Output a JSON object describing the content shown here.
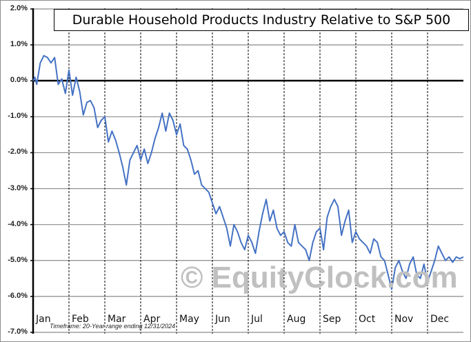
{
  "chart_data": {
    "type": "line",
    "title": "Durable Household Products Industry Relative to S&P 500",
    "xlabel": "",
    "ylabel": "",
    "ylim": [
      -7.0,
      2.0
    ],
    "y_ticks": [
      "2.0%",
      "1.0%",
      "0.0%",
      "-1.0%",
      "-2.0%",
      "-3.0%",
      "-4.0%",
      "-5.0%",
      "-6.0%",
      "-7.0%"
    ],
    "x_tick_labels": [
      "Jan",
      "Feb",
      "Mar",
      "Apr",
      "May",
      "Jun",
      "Jul",
      "Aug",
      "Sep",
      "Oct",
      "Nov",
      "Dec"
    ],
    "grid": {
      "horizontal": true,
      "vertical_dashed_month_dividers": true
    },
    "legend": null,
    "annotations": [
      "Timeframe: 20-Year range ending 12/31/2024",
      "© EquityClock.com"
    ],
    "series": [
      {
        "name": "Durable Household Products Industry Relative to S&P 500 (seasonal)",
        "color": "#4472c4",
        "x_month_fraction": [
          0.0,
          0.05,
          0.1,
          0.2,
          0.3,
          0.4,
          0.5,
          0.6,
          0.7,
          0.8,
          0.9,
          1.0,
          1.1,
          1.2,
          1.3,
          1.4,
          1.5,
          1.6,
          1.7,
          1.8,
          1.9,
          2.0,
          2.1,
          2.2,
          2.3,
          2.4,
          2.5,
          2.6,
          2.7,
          2.8,
          2.9,
          3.0,
          3.1,
          3.2,
          3.3,
          3.4,
          3.5,
          3.6,
          3.7,
          3.8,
          3.9,
          4.0,
          4.1,
          4.2,
          4.3,
          4.4,
          4.5,
          4.6,
          4.7,
          4.8,
          4.9,
          5.0,
          5.1,
          5.2,
          5.3,
          5.4,
          5.5,
          5.6,
          5.7,
          5.8,
          5.9,
          6.0,
          6.1,
          6.2,
          6.3,
          6.4,
          6.5,
          6.6,
          6.7,
          6.8,
          6.9,
          7.0,
          7.1,
          7.2,
          7.3,
          7.4,
          7.5,
          7.6,
          7.7,
          7.8,
          7.9,
          8.0,
          8.1,
          8.2,
          8.3,
          8.4,
          8.5,
          8.6,
          8.7,
          8.8,
          8.9,
          9.0,
          9.1,
          9.2,
          9.3,
          9.4,
          9.5,
          9.6,
          9.7,
          9.8,
          9.9,
          10.0,
          10.1,
          10.2,
          10.3,
          10.4,
          10.5,
          10.6,
          10.7,
          10.8,
          10.9,
          11.0,
          11.1,
          11.2,
          11.3,
          11.4,
          11.5,
          11.6,
          11.7,
          11.8,
          11.9,
          12.0
        ],
        "values": [
          0.0,
          0.1,
          -0.1,
          0.5,
          0.7,
          0.65,
          0.5,
          0.65,
          -0.1,
          0.05,
          -0.35,
          0.3,
          -0.4,
          0.1,
          -0.3,
          -0.95,
          -0.6,
          -0.55,
          -0.75,
          -1.3,
          -1.1,
          -1.0,
          -1.7,
          -1.4,
          -1.65,
          -2.0,
          -2.4,
          -2.9,
          -2.2,
          -2.0,
          -1.8,
          -2.2,
          -1.9,
          -2.3,
          -2.0,
          -1.6,
          -1.3,
          -0.9,
          -1.4,
          -0.9,
          -1.1,
          -1.5,
          -1.2,
          -1.8,
          -1.9,
          -2.2,
          -2.6,
          -2.5,
          -2.9,
          -3.0,
          -3.1,
          -3.4,
          -3.7,
          -3.5,
          -3.8,
          -4.1,
          -4.6,
          -4.0,
          -4.2,
          -4.5,
          -4.7,
          -4.3,
          -4.5,
          -4.8,
          -4.2,
          -3.7,
          -3.3,
          -3.9,
          -3.6,
          -4.1,
          -4.3,
          -4.2,
          -4.5,
          -4.6,
          -4.0,
          -4.5,
          -4.6,
          -4.7,
          -5.0,
          -4.5,
          -4.2,
          -4.1,
          -4.7,
          -3.8,
          -3.5,
          -3.3,
          -3.5,
          -4.3,
          -3.9,
          -3.6,
          -4.5,
          -4.2,
          -4.4,
          -4.5,
          -4.6,
          -4.8,
          -4.4,
          -4.5,
          -4.9,
          -5.0,
          -5.4,
          -5.8,
          -5.2,
          -5.0,
          -5.3,
          -5.5,
          -5.1,
          -4.9,
          -5.4,
          -5.5,
          -5.1,
          -5.6,
          -5.3,
          -5.0,
          -4.6,
          -4.8,
          -5.0,
          -4.9,
          -5.05,
          -4.9,
          -4.95,
          -4.9
        ],
        "min": -5.85,
        "max": 0.73
      }
    ]
  },
  "chart": {
    "title": "Durable Household Products Industry Relative to S&P 500",
    "timeframe": "Timeframe: 20-Year range ending 12/31/2024",
    "watermark": "© EquityClock.com",
    "y_ticks": [
      "2.0%",
      "1.0%",
      "0.0%",
      "-1.0%",
      "-2.0%",
      "-3.0%",
      "-4.0%",
      "-5.0%",
      "-6.0%",
      "-7.0%"
    ],
    "months": [
      "Jan",
      "Feb",
      "Mar",
      "Apr",
      "May",
      "Jun",
      "Jul",
      "Aug",
      "Sep",
      "Oct",
      "Nov",
      "Dec"
    ],
    "line_color": "#4472c4"
  }
}
